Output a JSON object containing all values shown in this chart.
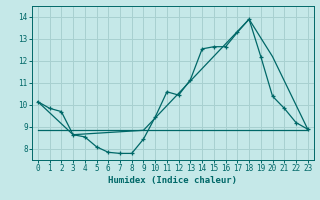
{
  "xlabel": "Humidex (Indice chaleur)",
  "ylabel": "",
  "bg_color": "#c5e8e8",
  "grid_color": "#a8d0d0",
  "line_color": "#006868",
  "xlim": [
    -0.5,
    23.5
  ],
  "ylim": [
    7.5,
    14.5
  ],
  "xticks": [
    0,
    1,
    2,
    3,
    4,
    5,
    6,
    7,
    8,
    9,
    10,
    11,
    12,
    13,
    14,
    15,
    16,
    17,
    18,
    19,
    20,
    21,
    22,
    23
  ],
  "yticks": [
    8,
    9,
    10,
    11,
    12,
    13,
    14
  ],
  "line1_x": [
    0,
    1,
    2,
    3,
    4,
    5,
    6,
    7,
    8,
    9,
    10,
    11,
    12,
    13,
    14,
    15,
    16,
    17,
    18,
    19,
    20,
    21,
    22,
    23
  ],
  "line1_y": [
    10.15,
    9.85,
    9.7,
    8.65,
    8.55,
    8.1,
    7.85,
    7.8,
    7.8,
    8.45,
    9.45,
    10.6,
    10.45,
    11.15,
    12.55,
    12.65,
    12.65,
    13.3,
    13.9,
    12.2,
    10.4,
    9.85,
    9.2,
    8.9
  ],
  "line2_x": [
    0,
    3,
    9,
    18,
    20,
    23
  ],
  "line2_y": [
    10.15,
    8.65,
    8.85,
    13.9,
    12.2,
    8.9
  ],
  "line3_x": [
    0,
    9,
    19,
    23
  ],
  "line3_y": [
    8.85,
    8.85,
    8.85,
    8.85
  ]
}
